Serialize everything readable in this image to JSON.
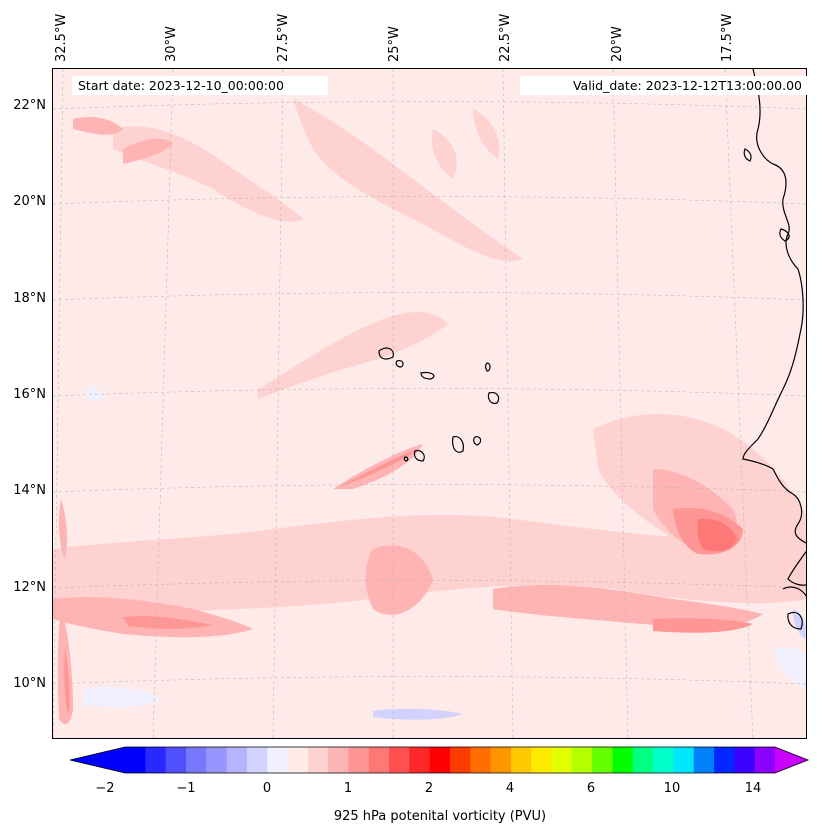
{
  "header": {
    "start_date": "Start date: 2023-12-10_00:00:00",
    "valid_date": "Valid_date: 2023-12-12T13:00:00.00"
  },
  "map": {
    "latitude_labels": [
      "22°N",
      "20°N",
      "18°N",
      "16°N",
      "14°N",
      "12°N",
      "10°N"
    ],
    "longitude_labels": [
      "32.5°W",
      "30°W",
      "27.5°W",
      "25°W",
      "22.5°W",
      "20°W",
      "17.5°W"
    ],
    "background_color": "#ffeaea",
    "coastline_color": "#000000"
  },
  "colorbar": {
    "label": "925 hPa potenital vorticity (PVU)",
    "tick_labels": [
      "−2",
      "−1",
      "0",
      "1",
      "2",
      "4",
      "6",
      "10",
      "14"
    ],
    "colors": [
      "#0000ff",
      "#2828ff",
      "#5050ff",
      "#7878ff",
      "#9696ff",
      "#b4b4ff",
      "#d2d2ff",
      "#f0f0ff",
      "#ffeaea",
      "#ffd2d2",
      "#ffb4b4",
      "#ff9696",
      "#ff7878",
      "#ff5050",
      "#ff2828",
      "#ff0000",
      "#ff3c00",
      "#ff6e00",
      "#ff9600",
      "#ffc800",
      "#ffeb00",
      "#e1ff00",
      "#b4ff00",
      "#64ff00",
      "#00ff00",
      "#00ff82",
      "#00ffc8",
      "#00e6ff",
      "#0082ff",
      "#0028ff",
      "#3c00ff",
      "#8c00ff"
    ],
    "extend_low_color": "#0000ff",
    "extend_high_color": "#c800ff"
  }
}
